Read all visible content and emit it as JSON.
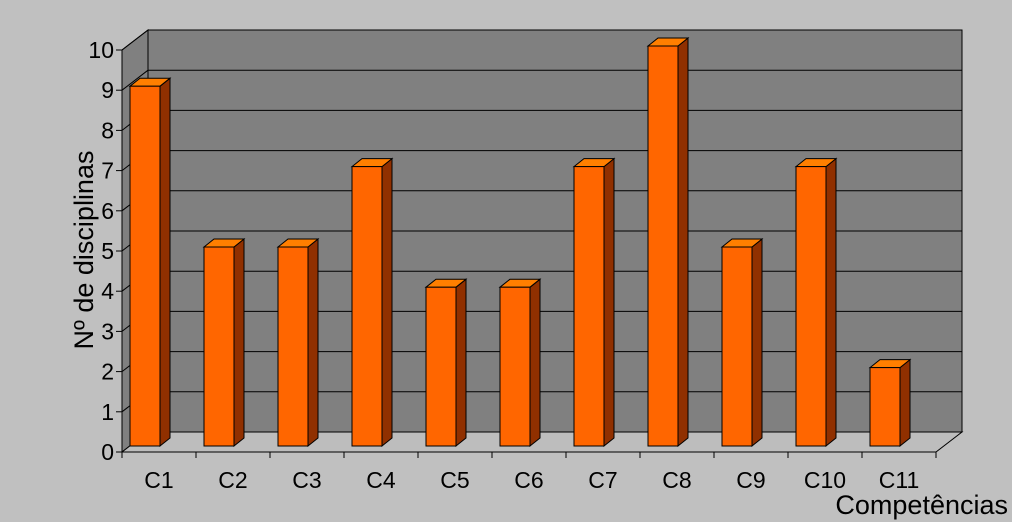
{
  "chart_data": {
    "type": "bar",
    "categories": [
      "C1",
      "C2",
      "C3",
      "C4",
      "C5",
      "C6",
      "C7",
      "C8",
      "C9",
      "C10",
      "C11"
    ],
    "values": [
      9,
      5,
      5,
      7,
      4,
      4,
      7,
      10,
      5,
      7,
      2
    ],
    "xlabel": "Competências",
    "ylabel": "Nº de disciplinas",
    "ylim": [
      0,
      10
    ],
    "yticks": [
      0,
      1,
      2,
      3,
      4,
      5,
      6,
      7,
      8,
      9,
      10
    ],
    "grid": true,
    "three_d": true
  },
  "colors": {
    "page_bg": "#c0c0c0",
    "plot_bg": "#808080",
    "floor": "#bdbdbd",
    "bar_front": "#ff6600",
    "bar_top": "#ff7f00",
    "bar_side": "#903000",
    "outline": "#000000"
  }
}
